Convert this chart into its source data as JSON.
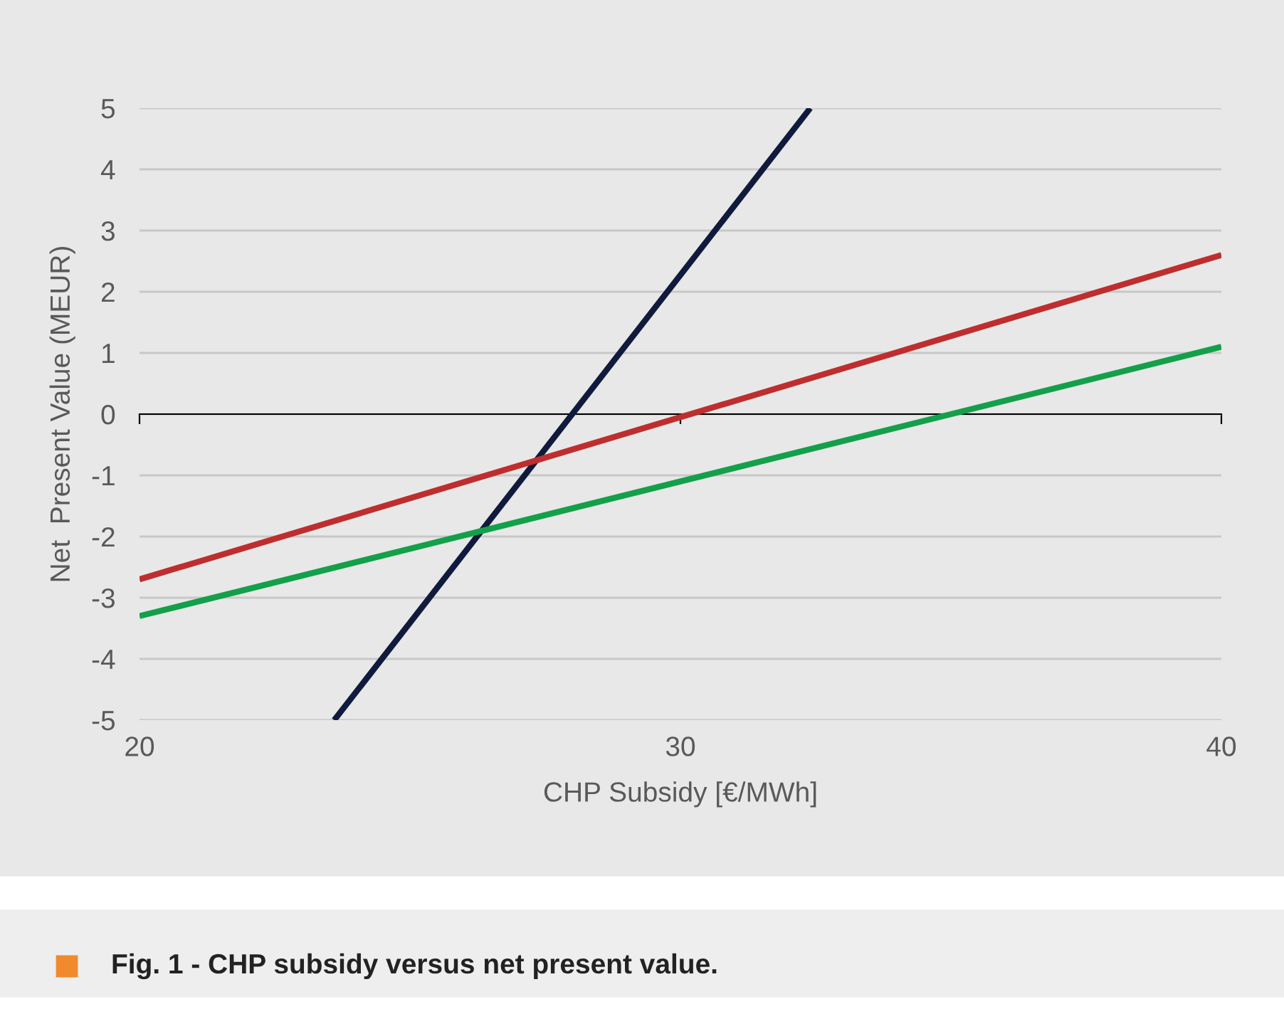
{
  "chart_data": {
    "type": "line",
    "xlabel": "CHP Subsidy [€/MWh]",
    "ylabel": "Net  Present Value (MEUR)",
    "series": [
      {
        "color": "#0f1a3c",
        "x": [
          23.6,
          32.4
        ],
        "values": [
          -5,
          5
        ]
      },
      {
        "color": "#be2e2e",
        "x": [
          20,
          40
        ],
        "values": [
          -2.7,
          2.6
        ]
      },
      {
        "color": "#14a04a",
        "x": [
          20,
          40
        ],
        "values": [
          -3.3,
          1.1
        ]
      }
    ],
    "xlim": [
      20,
      40
    ],
    "xticks": [
      20,
      30,
      40
    ],
    "ylim": [
      -5,
      5
    ],
    "yticks": [
      -5,
      -4,
      -3,
      -2,
      -1,
      0,
      1,
      2,
      3,
      4,
      5
    ],
    "grid": "y",
    "legend": false,
    "marker": "none",
    "line_style": "solid",
    "annotations": [
      "Fig. 1 - CHP subsidy versus net present value."
    ]
  }
}
